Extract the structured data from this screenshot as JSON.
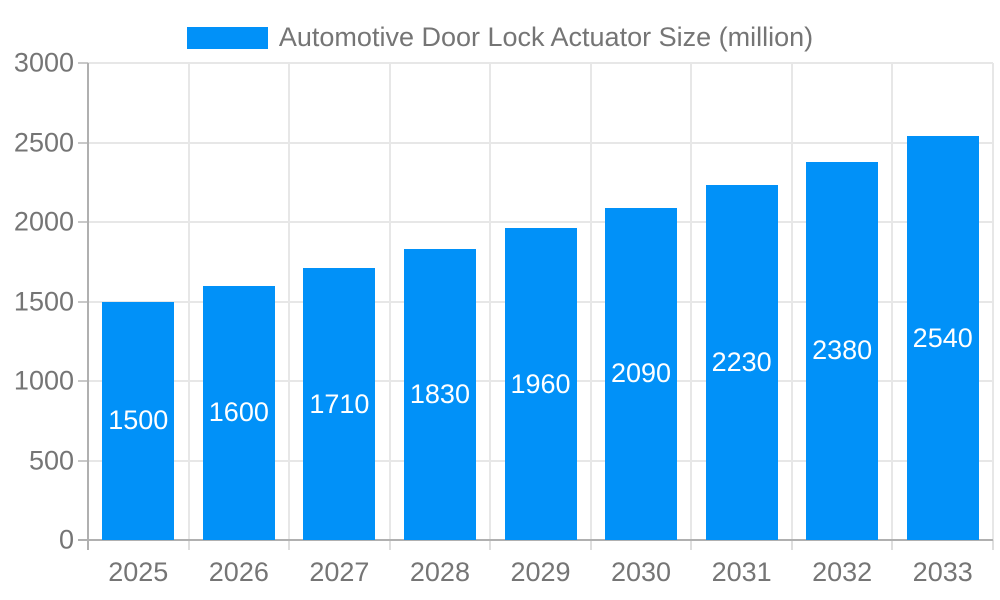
{
  "legend": {
    "label": "Automotive Door Lock Actuator Size (million)"
  },
  "colors": {
    "bar": "#0191f8",
    "bar_label": "#ffffff",
    "axis_text": "#757575",
    "grid_line": "#e7e7e7",
    "axis_line": "#b0b0b0",
    "background": "#ffffff"
  },
  "chart_data": {
    "type": "bar",
    "title": "Automotive Door Lock Actuator Size (million)",
    "categories": [
      "2025",
      "2026",
      "2027",
      "2028",
      "2029",
      "2030",
      "2031",
      "2032",
      "2033"
    ],
    "values": [
      1500,
      1600,
      1710,
      1830,
      1960,
      2090,
      2230,
      2380,
      2540
    ],
    "series": [
      {
        "name": "Automotive Door Lock Actuator Size (million)",
        "values": [
          1500,
          1600,
          1710,
          1830,
          1960,
          2090,
          2230,
          2380,
          2540
        ]
      }
    ],
    "xlabel": "",
    "ylabel": "",
    "ylim": [
      0,
      3000
    ],
    "ytick_step": 500,
    "yticks": [
      "0",
      "500",
      "1000",
      "1500",
      "2000",
      "2500",
      "3000"
    ],
    "grid": true,
    "legend_position": "top",
    "bar_labels_shown": true
  }
}
